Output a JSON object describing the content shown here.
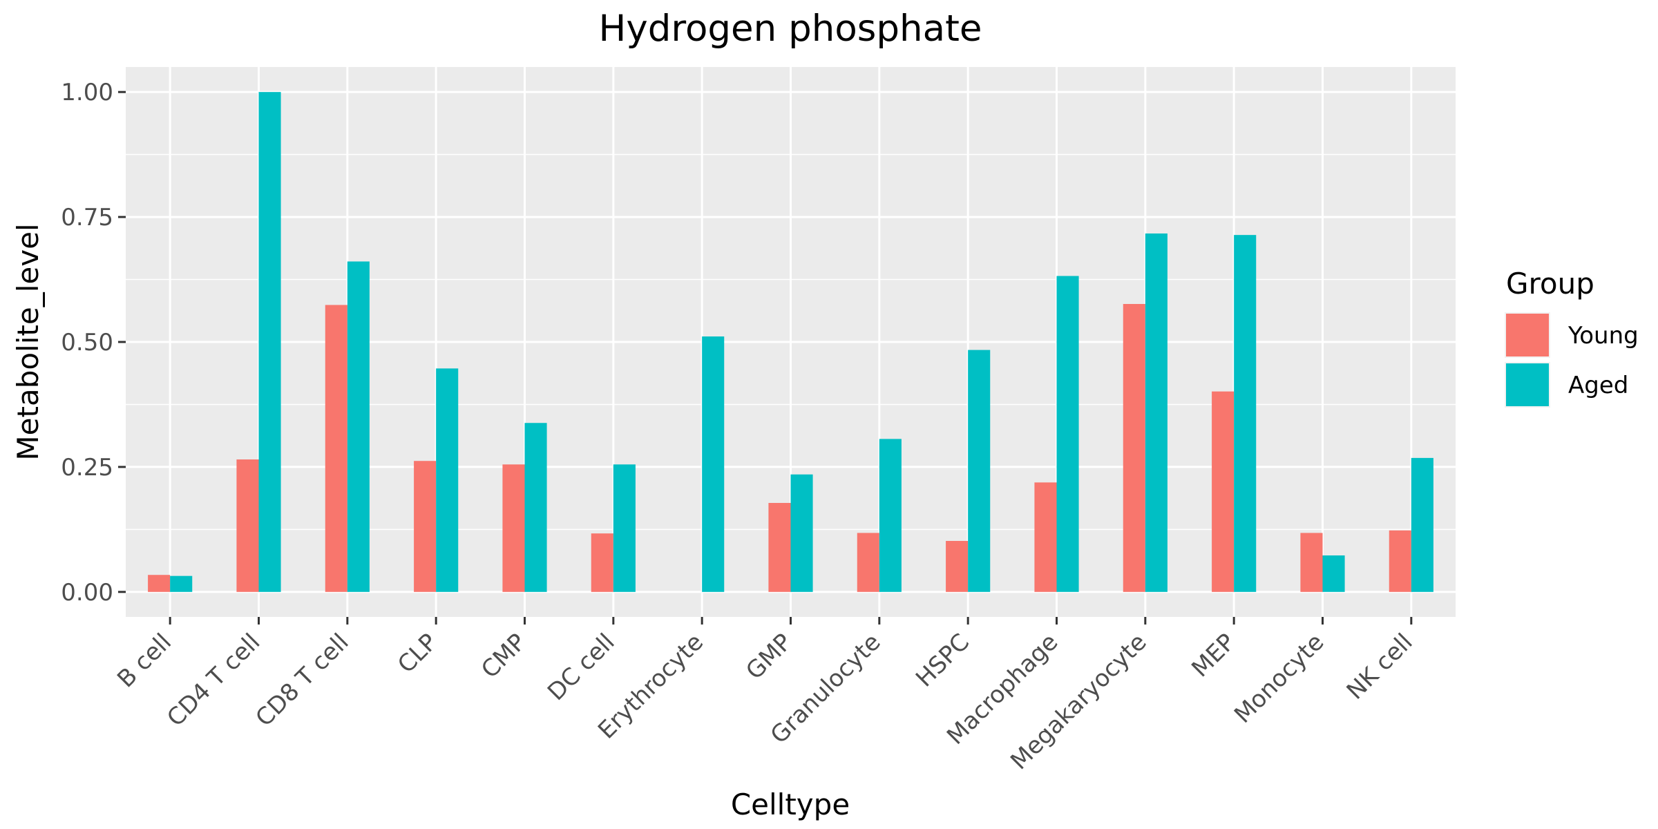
{
  "chart_data": {
    "type": "bar",
    "title": "Hydrogen phosphate",
    "xlabel": "Celltype",
    "ylabel": "Metabolite_level",
    "categories": [
      "B cell",
      "CD4 T cell",
      "CD8 T cell",
      "CLP",
      "CMP",
      "DC cell",
      "Erythrocyte",
      "GMP",
      "Granulocyte",
      "HSPC",
      "Macrophage",
      "Megakaryocyte",
      "MEP",
      "Monocyte",
      "NK cell"
    ],
    "series": [
      {
        "name": "Young",
        "color": "#F8766D",
        "values": [
          0.034,
          0.265,
          0.574,
          0.262,
          0.255,
          0.117,
          0.0,
          0.178,
          0.118,
          0.102,
          0.219,
          0.576,
          0.401,
          0.118,
          0.123
        ]
      },
      {
        "name": "Aged",
        "color": "#00BFC4",
        "values": [
          0.032,
          1.0,
          0.661,
          0.447,
          0.338,
          0.255,
          0.511,
          0.235,
          0.306,
          0.484,
          0.632,
          0.717,
          0.714,
          0.073,
          0.268
        ]
      }
    ],
    "ylim": [
      -0.05,
      1.05
    ],
    "yticks": [
      0,
      0.25,
      0.5,
      0.75,
      1.0
    ],
    "ytick_labels": [
      "0.00",
      "0.25",
      "0.50",
      "0.75",
      "1.00"
    ],
    "legend": {
      "title": "Group",
      "position": "right"
    },
    "grid": true,
    "panel_color": "#EBEBEB"
  }
}
